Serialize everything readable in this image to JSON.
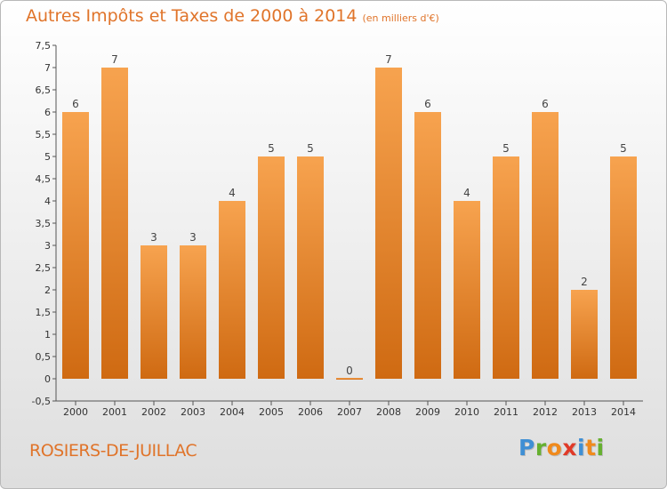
{
  "title": "Autres Impôts et Taxes de 2000 à 2014",
  "unit": "(en milliers d'€)",
  "place": "ROSIERS-DE-JUILLAC",
  "logo": {
    "letters": [
      "P",
      "r",
      "o",
      "x",
      "i",
      "t",
      "i"
    ],
    "colors": [
      "#3f8fd4",
      "#66b030",
      "#f08a1c",
      "#e03a28",
      "#3f8fd4",
      "#f08a1c",
      "#66b030"
    ]
  },
  "colors": {
    "bar_light": "#f7a34f",
    "bar_dark": "#cf6a12",
    "accent": "#e0742a"
  },
  "chart_data": {
    "type": "bar",
    "title": "Autres Impôts et Taxes de 2000 à 2014",
    "subtitle": "(en milliers d'€)",
    "categories": [
      "2000",
      "2001",
      "2002",
      "2003",
      "2004",
      "2005",
      "2006",
      "2007",
      "2008",
      "2009",
      "2010",
      "2011",
      "2012",
      "2013",
      "2014"
    ],
    "values": [
      6,
      7,
      3,
      3,
      4,
      5,
      5,
      0,
      7,
      6,
      4,
      5,
      6,
      2,
      5
    ],
    "ylim": [
      -0.5,
      7.5
    ],
    "yticks": [
      "-0,5",
      "0",
      "0,5",
      "1",
      "1,5",
      "2",
      "2,5",
      "3",
      "3,5",
      "4",
      "4,5",
      "5",
      "5,5",
      "6",
      "6,5",
      "7",
      "7,5"
    ],
    "grid": false,
    "legend": "none"
  }
}
